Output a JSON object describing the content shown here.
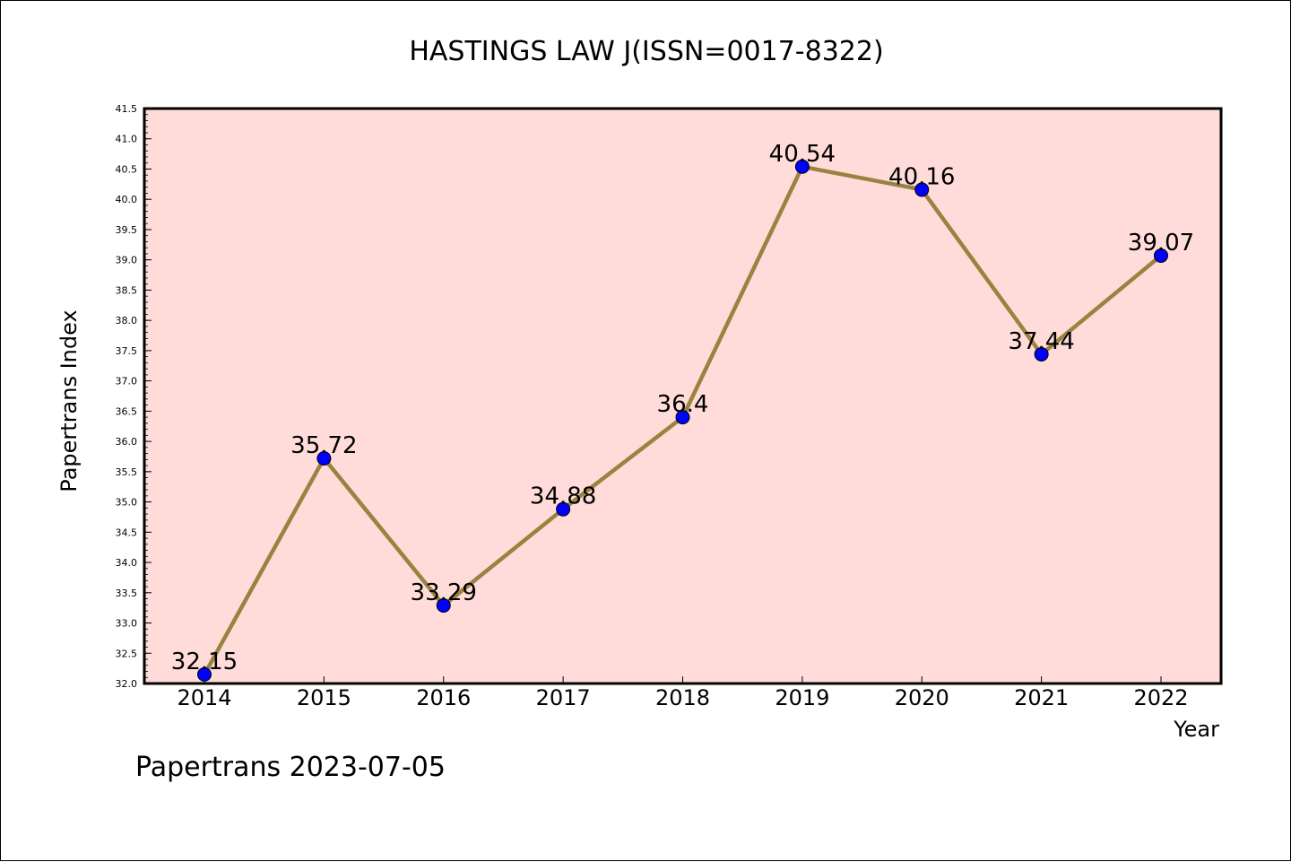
{
  "chart_data": {
    "type": "line",
    "title": "HASTINGS LAW J(ISSN=0017-8322)",
    "xlabel": "Year",
    "ylabel": "Papertrans Index",
    "categories": [
      "2014",
      "2015",
      "2016",
      "2017",
      "2018",
      "2019",
      "2020",
      "2021",
      "2022"
    ],
    "values": [
      32.15,
      35.72,
      33.29,
      34.88,
      36.4,
      40.54,
      40.16,
      37.44,
      39.07
    ],
    "data_labels": [
      "32.15",
      "35.72",
      "33.29",
      "34.88",
      "36.4",
      "40.54",
      "40.16",
      "37.44",
      "39.07"
    ],
    "ylim": [
      32.0,
      41.5
    ],
    "yticks": [
      "32.0",
      "32.5",
      "33.0",
      "33.5",
      "34.0",
      "34.5",
      "35.0",
      "35.5",
      "36.0",
      "36.5",
      "37.0",
      "37.5",
      "38.0",
      "38.5",
      "39.0",
      "39.5",
      "40.0",
      "40.5",
      "41.0",
      "41.5"
    ],
    "grid": false,
    "legend": "none",
    "colors": {
      "plot_background": "#ffdcd9",
      "line": "#9a8240",
      "marker": "#0000ff",
      "frame": "#000000"
    }
  },
  "footer": {
    "text": "Papertrans 2023-07-05"
  }
}
